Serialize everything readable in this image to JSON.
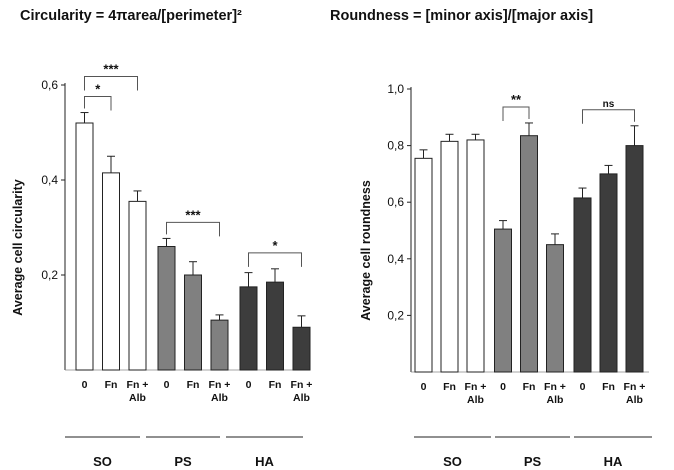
{
  "chart_data": [
    {
      "type": "bar",
      "title": "Circularity = 4πarea/[perimeter]²",
      "xlabel": "",
      "ylabel": "Average cell circularity",
      "ylim": [
        0,
        0.6
      ],
      "yticks": [
        "0,2",
        "0,4",
        "0,6"
      ],
      "ytick_values": [
        0.2,
        0.4,
        0.6
      ],
      "categories": [
        "0",
        "Fn",
        "Fn + Alb",
        "0",
        "Fn",
        "Fn + Alb",
        "0",
        "Fn",
        "Fn + Alb"
      ],
      "groups": [
        "SO",
        "SO",
        "SO",
        "PS",
        "PS",
        "PS",
        "HA",
        "HA",
        "HA"
      ],
      "group_labels": [
        "SO",
        "PS",
        "HA"
      ],
      "values": [
        0.52,
        0.415,
        0.355,
        0.26,
        0.2,
        0.105,
        0.175,
        0.185,
        0.09
      ],
      "errors": [
        0.022,
        0.035,
        0.022,
        0.017,
        0.028,
        0.011,
        0.03,
        0.028,
        0.024
      ],
      "bar_colors": [
        "#ffffff",
        "#ffffff",
        "#ffffff",
        "#808080",
        "#808080",
        "#808080",
        "#3d3d3d",
        "#3d3d3d",
        "#3d3d3d"
      ],
      "significance": [
        {
          "from": 0,
          "to": 1,
          "label": "*"
        },
        {
          "from": 0,
          "to": 2,
          "label": "***"
        },
        {
          "from": 3,
          "to": 5,
          "label": "***"
        },
        {
          "from": 6,
          "to": 8,
          "label": "*"
        }
      ]
    },
    {
      "type": "bar",
      "title": "Roundness = [minor axis]/[major axis]",
      "xlabel": "",
      "ylabel": "Average cell roundness",
      "ylim": [
        0,
        1.0
      ],
      "yticks": [
        "0,2",
        "0,4",
        "0,6",
        "0,8",
        "1,0"
      ],
      "ytick_values": [
        0.2,
        0.4,
        0.6,
        0.8,
        1.0
      ],
      "categories": [
        "0",
        "Fn",
        "Fn + Alb",
        "0",
        "Fn",
        "Fn + Alb",
        "0",
        "Fn",
        "Fn + Alb"
      ],
      "groups": [
        "SO",
        "SO",
        "SO",
        "PS",
        "PS",
        "PS",
        "HA",
        "HA",
        "HA"
      ],
      "group_labels": [
        "SO",
        "PS",
        "HA"
      ],
      "values": [
        0.755,
        0.815,
        0.82,
        0.505,
        0.835,
        0.45,
        0.615,
        0.7,
        0.8
      ],
      "errors": [
        0.03,
        0.025,
        0.02,
        0.03,
        0.045,
        0.038,
        0.035,
        0.03,
        0.07
      ],
      "bar_colors": [
        "#ffffff",
        "#ffffff",
        "#ffffff",
        "#808080",
        "#808080",
        "#808080",
        "#3d3d3d",
        "#3d3d3d",
        "#3d3d3d"
      ],
      "significance": [
        {
          "from": 3,
          "to": 4,
          "label": "**"
        },
        {
          "from": 6,
          "to": 8,
          "label": "ns"
        }
      ]
    }
  ]
}
